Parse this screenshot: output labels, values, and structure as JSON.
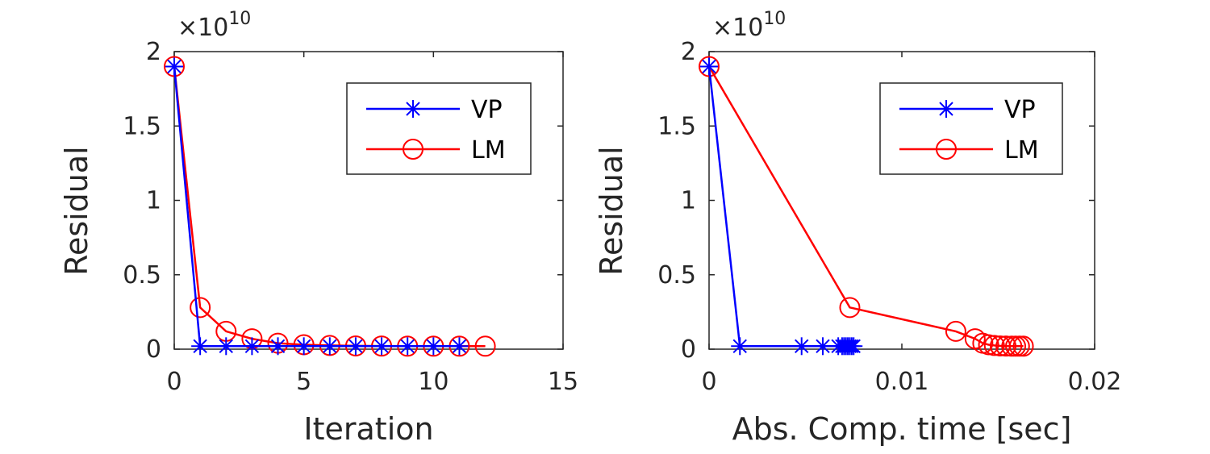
{
  "chart_data": [
    {
      "type": "line",
      "xlabel": "Iteration",
      "ylabel": "Residual",
      "y_multiplier_base": "10",
      "y_multiplier_exp": "10",
      "y_multiplier_prefix": "×",
      "xlim": [
        0,
        15
      ],
      "ylim": [
        0,
        2
      ],
      "xticks": [
        "0",
        "5",
        "10",
        "15"
      ],
      "yticks": [
        "0",
        "0.5",
        "1",
        "1.5",
        "2"
      ],
      "legend_position": "top-right",
      "series": [
        {
          "name": "VP",
          "color": "#0000ff",
          "marker": "asterisk",
          "x": [
            0,
            1,
            2,
            3,
            4,
            5,
            6,
            7,
            8,
            9,
            10,
            11
          ],
          "y": [
            1.9,
            0.02,
            0.02,
            0.02,
            0.02,
            0.02,
            0.02,
            0.02,
            0.02,
            0.02,
            0.02,
            0.02
          ]
        },
        {
          "name": "LM",
          "color": "#ff0000",
          "marker": "circle",
          "x": [
            0,
            1,
            2,
            3,
            4,
            5,
            6,
            7,
            8,
            9,
            10,
            11,
            12
          ],
          "y": [
            1.9,
            0.28,
            0.12,
            0.07,
            0.04,
            0.03,
            0.025,
            0.022,
            0.021,
            0.02,
            0.02,
            0.02,
            0.02
          ]
        }
      ]
    },
    {
      "type": "line",
      "xlabel": "Abs. Comp. time [sec]",
      "ylabel": "Residual",
      "y_multiplier_base": "10",
      "y_multiplier_exp": "10",
      "y_multiplier_prefix": "×",
      "xlim": [
        0,
        0.02
      ],
      "ylim": [
        0,
        2
      ],
      "xticks": [
        "0",
        "0.01",
        "0.02"
      ],
      "yticks": [
        "0",
        "0.5",
        "1",
        "1.5",
        "2"
      ],
      "legend_position": "top-right",
      "series": [
        {
          "name": "VP",
          "color": "#0000ff",
          "marker": "asterisk",
          "x": [
            0,
            0.0016,
            0.0048,
            0.0059,
            0.0067,
            0.0069,
            0.007,
            0.0071,
            0.0072,
            0.0073,
            0.0074,
            0.0075
          ],
          "y": [
            1.9,
            0.02,
            0.02,
            0.02,
            0.02,
            0.02,
            0.02,
            0.02,
            0.02,
            0.02,
            0.02,
            0.02
          ]
        },
        {
          "name": "LM",
          "color": "#ff0000",
          "marker": "circle",
          "x": [
            0,
            0.0073,
            0.0128,
            0.0138,
            0.0142,
            0.0145,
            0.0148,
            0.0151,
            0.0154,
            0.0157,
            0.0159,
            0.0161,
            0.0163
          ],
          "y": [
            1.9,
            0.28,
            0.12,
            0.07,
            0.04,
            0.03,
            0.025,
            0.022,
            0.021,
            0.02,
            0.02,
            0.02,
            0.02
          ]
        }
      ]
    }
  ]
}
